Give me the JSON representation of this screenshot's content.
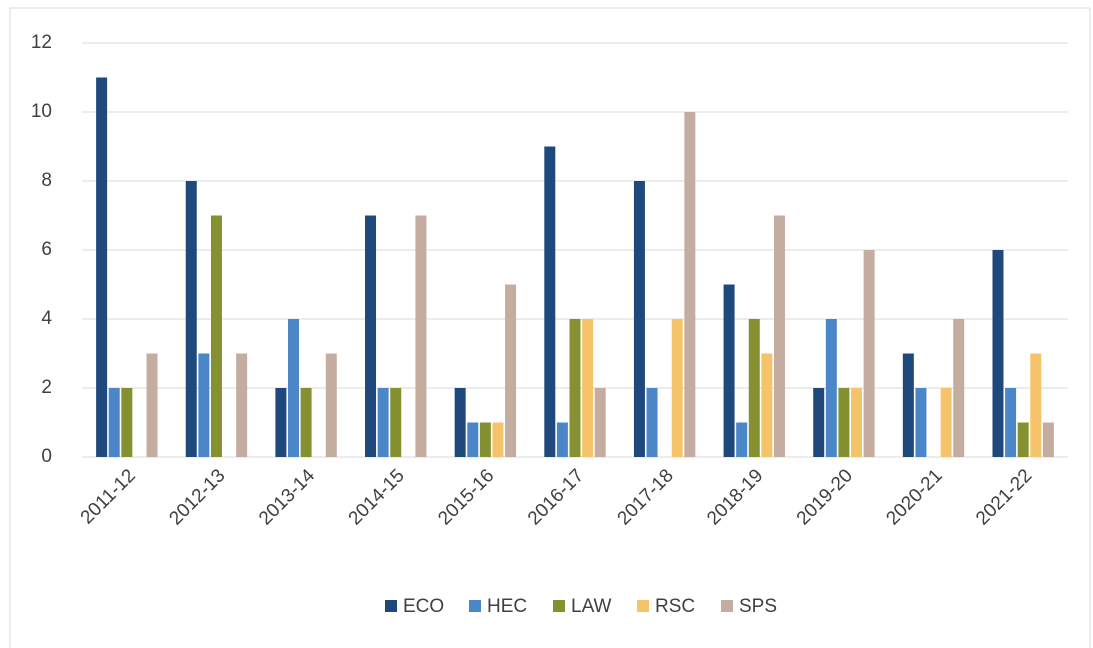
{
  "chart_data": {
    "type": "bar",
    "categories": [
      "2011-12",
      "2012-13",
      "2013-14",
      "2014-15",
      "2015-16",
      "2016-17",
      "2017-18",
      "2018-19",
      "2019-20",
      "2020-21",
      "2021-22"
    ],
    "series": [
      {
        "name": "ECO",
        "color": "#1f497d",
        "values": [
          11,
          8,
          2,
          7,
          2,
          9,
          8,
          5,
          2,
          3,
          6
        ]
      },
      {
        "name": "HEC",
        "color": "#4a86c8",
        "values": [
          2,
          3,
          4,
          2,
          1,
          1,
          2,
          1,
          4,
          2,
          2
        ]
      },
      {
        "name": "LAW",
        "color": "#859130",
        "values": [
          2,
          7,
          2,
          2,
          1,
          4,
          0,
          4,
          2,
          0,
          1
        ]
      },
      {
        "name": "RSC",
        "color": "#f5c46a",
        "values": [
          0,
          0,
          0,
          0,
          1,
          4,
          4,
          3,
          2,
          2,
          3
        ]
      },
      {
        "name": "SPS",
        "color": "#c5aca0",
        "values": [
          3,
          3,
          3,
          7,
          5,
          2,
          10,
          7,
          6,
          4,
          1
        ]
      }
    ],
    "ylim": [
      0,
      12
    ],
    "yticks": [
      0,
      2,
      4,
      6,
      8,
      10,
      12
    ],
    "grid": true,
    "legend": "bottom"
  }
}
